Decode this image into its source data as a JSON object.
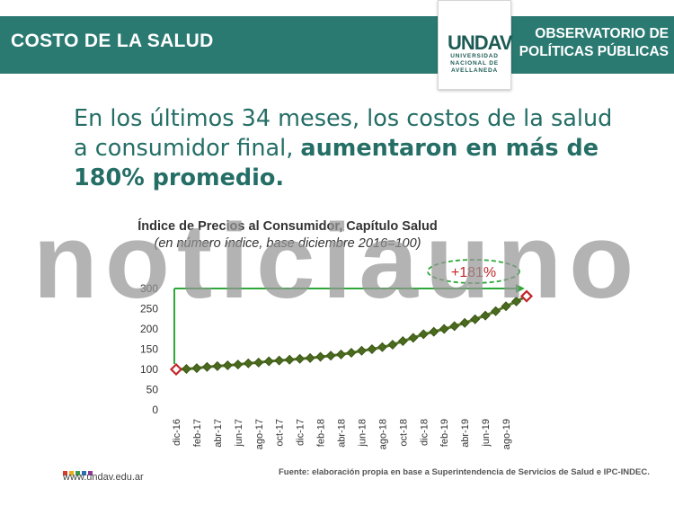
{
  "header": {
    "section_title": "COSTO DE LA SALUD",
    "observatorio_line1": "OBSERVATORIO DE",
    "observatorio_line2": "POLÍTICAS PÚBLICAS",
    "logo_mark": "UNDAV",
    "logo_line1": "UNIVERSIDAD",
    "logo_line2": "NACIONAL DE",
    "logo_line3": "AVELLANEDA"
  },
  "headline": {
    "normal": "En los últimos 34 meses, los costos de la salud a consumidor final, ",
    "bold": "aumentaron en más de 180% promedio."
  },
  "watermark": "noticiauno",
  "chart_data": {
    "type": "line",
    "title": "Índice de Precios al Consumidor, Capítulo Salud",
    "subtitle": "(en número índice, base diciembre 2016=100)",
    "ylim": [
      0,
      300
    ],
    "yticks": [
      "300",
      "250",
      "200",
      "150",
      "100",
      "50",
      "0"
    ],
    "x": [
      "dic-16",
      "ene-17",
      "feb-17",
      "mar-17",
      "abr-17",
      "may-17",
      "jun-17",
      "jul-17",
      "ago-17",
      "sep-17",
      "oct-17",
      "nov-17",
      "dic-17",
      "ene-18",
      "feb-18",
      "mar-18",
      "abr-18",
      "may-18",
      "jun-18",
      "jul-18",
      "ago-18",
      "sep-18",
      "oct-18",
      "nov-18",
      "dic-18",
      "ene-19",
      "feb-19",
      "mar-19",
      "abr-19",
      "may-19",
      "jun-19",
      "jul-19",
      "ago-19",
      "sep-19",
      "oct-19"
    ],
    "xtick_labels": [
      "dic-16",
      "",
      "feb-17",
      "",
      "abr-17",
      "",
      "jun-17",
      "",
      "ago-17",
      "",
      "oct-17",
      "",
      "dic-17",
      "",
      "feb-18",
      "",
      "abr-18",
      "",
      "jun-18",
      "",
      "ago-18",
      "",
      "oct-18",
      "",
      "dic-18",
      "",
      "feb-19",
      "",
      "abr-19",
      "",
      "jun-19",
      "",
      "ago-19",
      "",
      ""
    ],
    "values": [
      100,
      101,
      103,
      106,
      108,
      110,
      112,
      115,
      117,
      120,
      122,
      124,
      126,
      128,
      131,
      134,
      137,
      141,
      146,
      150,
      155,
      161,
      170,
      178,
      187,
      193,
      200,
      207,
      215,
      224,
      233,
      244,
      256,
      268,
      281
    ],
    "annotation": "+181%",
    "colors": {
      "line": "#5a7a2a",
      "marker": "#4a6a1e",
      "endpoint": "#c0282b",
      "arrow": "#2ea83a",
      "annotation_text": "#c0282b"
    }
  },
  "footer": {
    "url": "www.undav.edu.ar",
    "source": "Fuente: elaboración propia en base a Superintendencia de Servicios de Salud e IPC-INDEC.",
    "dot_colors": [
      "#d93a2f",
      "#f0a81d",
      "#3a9a47",
      "#2a6fb5",
      "#8a3b96"
    ]
  }
}
